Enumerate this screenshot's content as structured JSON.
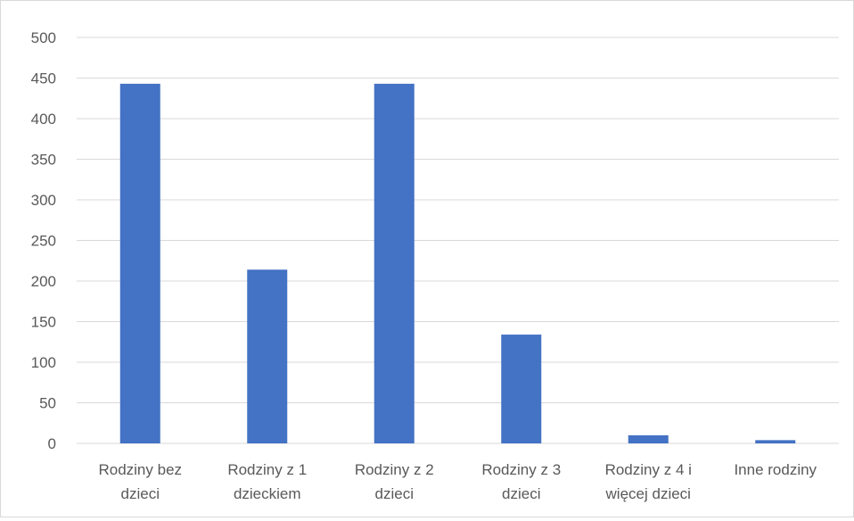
{
  "chart_data": {
    "type": "bar",
    "title": "",
    "xlabel": "",
    "ylabel": "",
    "ylim": [
      0,
      500
    ],
    "y_ticks": [
      0,
      50,
      100,
      150,
      200,
      250,
      300,
      350,
      400,
      450,
      500
    ],
    "grid": true,
    "legend": "none",
    "bar_color": "#4472C4",
    "grid_color": "#d9d9d9",
    "categories": [
      [
        "Rodziny bez",
        "dzieci"
      ],
      [
        "Rodziny z 1",
        "dzieckiem"
      ],
      [
        "Rodziny z 2",
        "dzieci"
      ],
      [
        "Rodziny z 3",
        "dzieci"
      ],
      [
        "Rodziny z 4 i",
        "więcej dzieci"
      ],
      [
        "Inne rodziny"
      ]
    ],
    "values": [
      443,
      214,
      443,
      134,
      10,
      4
    ]
  }
}
